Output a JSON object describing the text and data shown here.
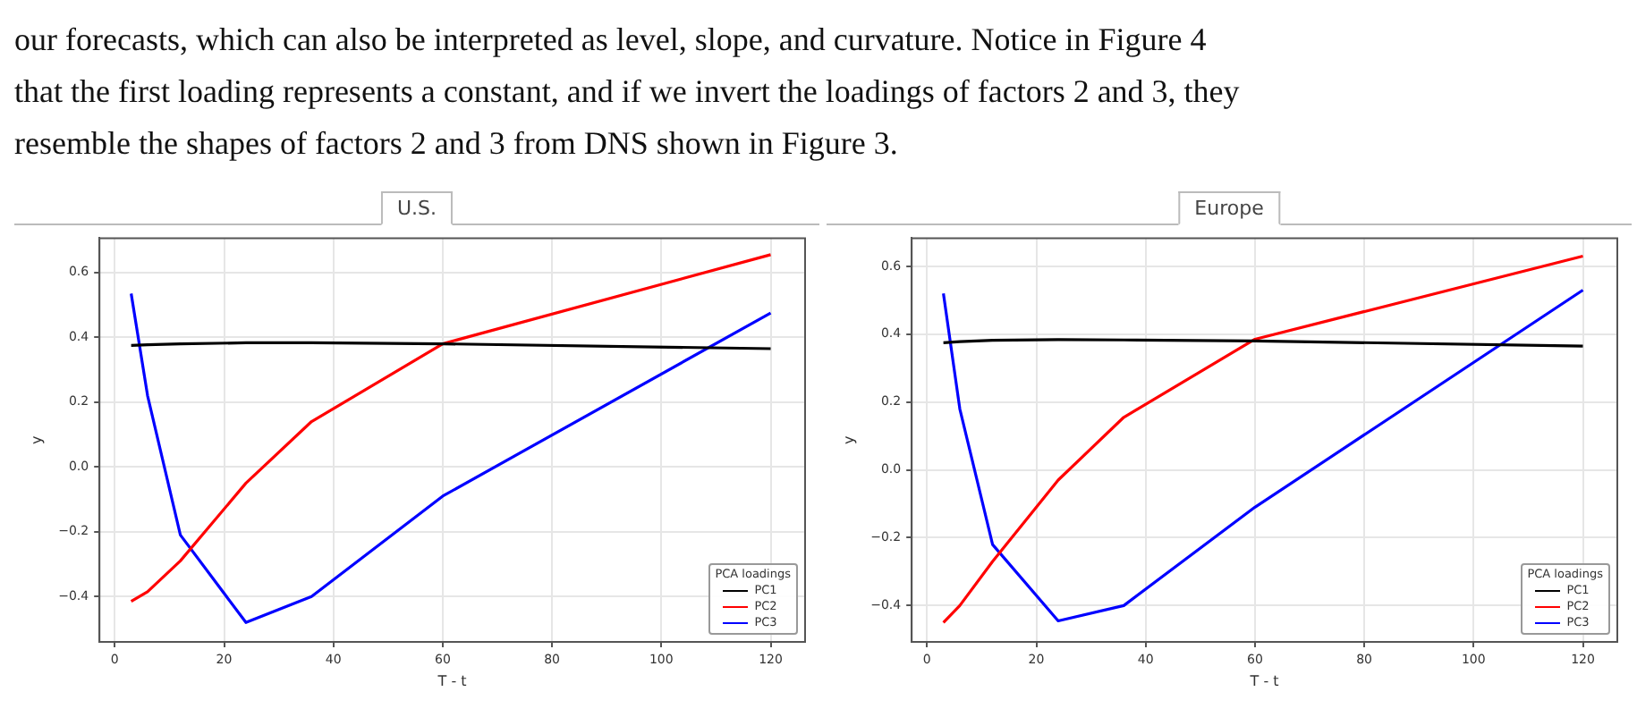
{
  "chart_data": [
    {
      "type": "line",
      "title": "U.S.",
      "xlabel": "T - t",
      "ylabel": "y",
      "legend_title": "PCA loadings",
      "legend": "bottom right",
      "grid": true,
      "line_style": "solid",
      "marker": "none",
      "annotations": [
        "our forecasts, which can also be interpreted as level, slope, and curvature. Notice in Figure 4",
        "that the first loading represents a constant, and if we invert the loadings of factors 2 and 3, they",
        "resemble the shapes of factors 2 and 3 from DNS shown in Figure 3."
      ],
      "x": [
        3,
        6,
        12,
        24,
        36,
        60,
        120
      ],
      "xlim": [
        -2.8,
        126.3
      ],
      "xticks": [
        0,
        20,
        40,
        60,
        80,
        100,
        120
      ],
      "ylim": [
        -0.54,
        0.706
      ],
      "yticks": [
        {
          "value": -0.4,
          "label": "−0.4"
        },
        {
          "value": -0.2,
          "label": "−0.2"
        },
        {
          "value": 0,
          "label": "0.0"
        },
        {
          "value": 0.2,
          "label": "0.2"
        },
        {
          "value": 0.4,
          "label": "0.4"
        },
        {
          "value": 0.6,
          "label": "0.6"
        }
      ],
      "series": [
        {
          "name": "PC1",
          "color": "#000000",
          "values": [
            0.375,
            0.377,
            0.38,
            0.383,
            0.383,
            0.38,
            0.365
          ]
        },
        {
          "name": "PC2",
          "color": "#ff0000",
          "values": [
            -0.415,
            -0.385,
            -0.29,
            -0.05,
            0.14,
            0.38,
            0.655
          ]
        },
        {
          "name": "PC3",
          "color": "#0000ff",
          "values": [
            0.535,
            0.22,
            -0.21,
            -0.48,
            -0.4,
            -0.09,
            0.475
          ]
        }
      ]
    },
    {
      "type": "line",
      "title": "Europe",
      "xlabel": "T - t",
      "ylabel": "y",
      "legend_title": "PCA loadings",
      "legend": "bottom right",
      "grid": true,
      "line_style": "solid",
      "marker": "none",
      "x": [
        3,
        6,
        12,
        24,
        36,
        60,
        120
      ],
      "xlim": [
        -2.8,
        126.3
      ],
      "xticks": [
        0,
        20,
        40,
        60,
        80,
        100,
        120
      ],
      "ylim": [
        -0.507,
        0.683
      ],
      "yticks": [
        {
          "value": -0.4,
          "label": "−0.4"
        },
        {
          "value": -0.2,
          "label": "−0.2"
        },
        {
          "value": 0,
          "label": "0.0"
        },
        {
          "value": 0.2,
          "label": "0.2"
        },
        {
          "value": 0.4,
          "label": "0.4"
        },
        {
          "value": 0.6,
          "label": "0.6"
        }
      ],
      "series": [
        {
          "name": "PC1",
          "color": "#000000",
          "values": [
            0.375,
            0.378,
            0.382,
            0.384,
            0.383,
            0.38,
            0.365
          ]
        },
        {
          "name": "PC2",
          "color": "#ff0000",
          "values": [
            -0.45,
            -0.4,
            -0.27,
            -0.03,
            0.155,
            0.385,
            0.63
          ]
        },
        {
          "name": "PC3",
          "color": "#0000ff",
          "values": [
            0.52,
            0.18,
            -0.22,
            -0.445,
            -0.4,
            -0.11,
            0.53
          ]
        }
      ]
    }
  ]
}
